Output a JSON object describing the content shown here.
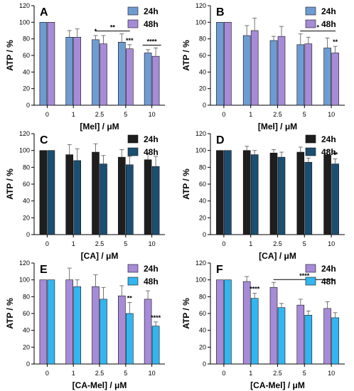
{
  "chart_data": [
    {
      "type": "bar",
      "panel_label": "A",
      "categories": [
        "0",
        "1",
        "2.5",
        "5",
        "10"
      ],
      "xlabel": "[Mel] / μM",
      "ylabel": "ATP / %",
      "ylim": [
        0,
        120
      ],
      "yticks": [
        0,
        20,
        40,
        60,
        80,
        100,
        120
      ],
      "legend_position": "top-right",
      "series": [
        {
          "name": "24h",
          "color": "#6f9bd3",
          "values": [
            100,
            82,
            79,
            76,
            63
          ],
          "errors": [
            0,
            8,
            5,
            10,
            4
          ]
        },
        {
          "name": "48h",
          "color": "#a78bd8",
          "values": [
            100,
            82,
            74,
            68,
            59
          ],
          "errors": [
            0,
            10,
            10,
            5,
            10
          ]
        }
      ],
      "annotations": [
        {
          "text": "*",
          "category": "2.5",
          "series": "24h"
        },
        {
          "text": "**",
          "bracket": [
            "2.5",
            "5"
          ],
          "series": "24h"
        },
        {
          "text": "***",
          "category": "5",
          "series": "48h"
        },
        {
          "text": "****",
          "bracket": [
            "10",
            "10"
          ],
          "series": "both"
        }
      ]
    },
    {
      "type": "bar",
      "panel_label": "B",
      "categories": [
        "0",
        "1",
        "2.5",
        "5",
        "10"
      ],
      "xlabel": "[Mel] / μM",
      "ylabel": "ATP / %",
      "ylim": [
        0,
        120
      ],
      "yticks": [
        0,
        20,
        40,
        60,
        80,
        100,
        120
      ],
      "legend_position": "top-right",
      "series": [
        {
          "name": "24h",
          "color": "#6f9bd3",
          "values": [
            100,
            84,
            78,
            73,
            69
          ],
          "errors": [
            0,
            12,
            5,
            13,
            12
          ]
        },
        {
          "name": "48h",
          "color": "#a78bd8",
          "values": [
            100,
            90,
            83,
            74,
            63
          ],
          "errors": [
            0,
            15,
            12,
            8,
            8
          ]
        }
      ],
      "annotations": [
        {
          "text": "*",
          "bracket": [
            "5",
            "10"
          ],
          "series": "24h"
        },
        {
          "text": "**",
          "category": "10",
          "series": "48h"
        }
      ]
    },
    {
      "type": "bar",
      "panel_label": "C",
      "categories": [
        "0",
        "1",
        "2.5",
        "5",
        "10"
      ],
      "xlabel": "[CA] / μM",
      "ylabel": "ATP / %",
      "ylim": [
        0,
        120
      ],
      "yticks": [
        0,
        20,
        40,
        60,
        80,
        100,
        120
      ],
      "legend_position": "top-right",
      "series": [
        {
          "name": "24h",
          "color": "#1e1e1e",
          "values": [
            100,
            95,
            98,
            92,
            89
          ],
          "errors": [
            0,
            12,
            10,
            9,
            8
          ]
        },
        {
          "name": "48h",
          "color": "#1b4f72",
          "values": [
            100,
            88,
            84,
            83,
            81
          ],
          "errors": [
            0,
            14,
            10,
            10,
            12
          ]
        }
      ],
      "annotations": []
    },
    {
      "type": "bar",
      "panel_label": "D",
      "categories": [
        "0",
        "1",
        "2.5",
        "5",
        "10"
      ],
      "xlabel": "[CA] / μM",
      "ylabel": "ATP / %",
      "ylim": [
        0,
        120
      ],
      "yticks": [
        0,
        20,
        40,
        60,
        80,
        100,
        120
      ],
      "legend_position": "top-right",
      "series": [
        {
          "name": "24h",
          "color": "#1e1e1e",
          "values": [
            100,
            100,
            97,
            98,
            95
          ],
          "errors": [
            0,
            5,
            4,
            6,
            5
          ]
        },
        {
          "name": "48h",
          "color": "#1b4f72",
          "values": [
            100,
            95,
            92,
            86,
            84
          ],
          "errors": [
            0,
            5,
            6,
            5,
            6
          ]
        }
      ],
      "annotations": [
        {
          "text": "*",
          "category": "5",
          "series": "48h"
        },
        {
          "text": "**",
          "category": "10",
          "series": "48h"
        }
      ]
    },
    {
      "type": "bar",
      "panel_label": "E",
      "categories": [
        "0",
        "1",
        "2.5",
        "5",
        "10"
      ],
      "xlabel": "[CA-Mel] / μM",
      "ylabel": "ATP / %",
      "ylim": [
        0,
        120
      ],
      "yticks": [
        0,
        20,
        40,
        60,
        80,
        100,
        120
      ],
      "legend_position": "top-right",
      "series": [
        {
          "name": "24h",
          "color": "#a78bd8",
          "values": [
            100,
            100,
            92,
            81,
            77
          ],
          "errors": [
            0,
            14,
            14,
            12,
            10
          ]
        },
        {
          "name": "48h",
          "color": "#33b6f0",
          "values": [
            100,
            92,
            77,
            60,
            45
          ],
          "errors": [
            0,
            8,
            14,
            13,
            5
          ]
        }
      ],
      "annotations": [
        {
          "text": "**",
          "category": "5",
          "series": "48h"
        },
        {
          "text": "****",
          "category": "10",
          "series": "48h"
        }
      ]
    },
    {
      "type": "bar",
      "panel_label": "F",
      "categories": [
        "0",
        "1",
        "2.5",
        "5",
        "10"
      ],
      "xlabel": "[CA-Mel] / μM",
      "ylabel": "ATP / %",
      "ylim": [
        0,
        120
      ],
      "yticks": [
        0,
        20,
        40,
        60,
        80,
        100,
        120
      ],
      "legend_position": "top-right",
      "series": [
        {
          "name": "24h",
          "color": "#a78bd8",
          "values": [
            100,
            98,
            91,
            70,
            66
          ],
          "errors": [
            0,
            6,
            6,
            7,
            8
          ]
        },
        {
          "name": "48h",
          "color": "#33b6f0",
          "values": [
            100,
            78,
            67,
            58,
            55
          ],
          "errors": [
            0,
            6,
            5,
            5,
            6
          ]
        }
      ],
      "annotations": [
        {
          "text": "****",
          "category": "1",
          "series": "48h"
        },
        {
          "text": "****",
          "bracket": [
            "2.5",
            "10"
          ],
          "series": "48h"
        }
      ]
    }
  ]
}
